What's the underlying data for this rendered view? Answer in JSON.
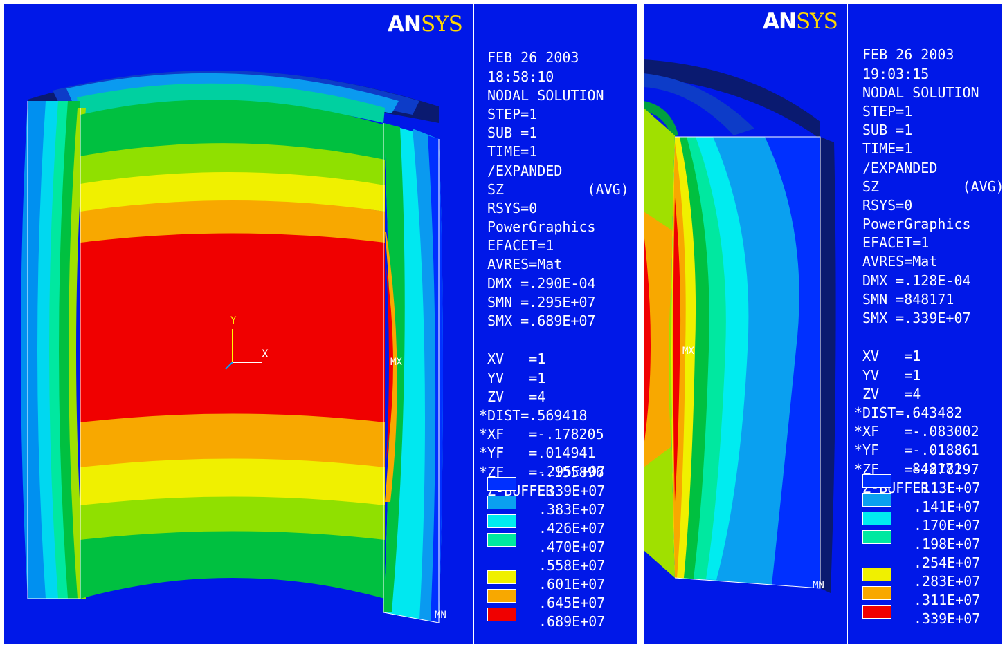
{
  "panels": [
    {
      "logo": {
        "an": "AN",
        "sys": "SYS"
      },
      "header": [
        "FEB 26 2003",
        "18:58:10",
        "NODAL SOLUTION",
        "STEP=1",
        "SUB =1",
        "TIME=1",
        "/EXPANDED",
        "SZ          (AVG)",
        "RSYS=0",
        "PowerGraphics",
        "EFACET=1",
        "AVRES=Mat",
        "DMX =.290E-04",
        "SMN =.295E+07",
        "SMX =.689E+07"
      ],
      "view": [
        "XV   =1",
        "YV   =1",
        "ZV   =4",
        "*DIST=.569418",
        "*XF   =-.178205",
        "*YF   =.014941",
        "*ZF   =-.155896",
        "Z-BUFFER"
      ],
      "legend_top": ".295E+07",
      "legend": [
        {
          "color": "#0030ff",
          "value": ".339E+07"
        },
        {
          "color": "#0aa0f0",
          "value": ".383E+07"
        },
        {
          "color": "#00ecf0",
          "value": ".426E+07"
        },
        {
          "color": "#00e8a0",
          "value": ".470E+07"
        },
        {
          "color": "",
          "value": ".558E+07"
        },
        {
          "color": "#f0f000",
          "value": ".601E+07"
        },
        {
          "color": "#f8a800",
          "value": ".645E+07"
        },
        {
          "color": "#f00000",
          "value": ".689E+07"
        }
      ],
      "markers": {
        "mx": "MX",
        "mn": "MN",
        "axis_y": "Y",
        "axis_x": "X"
      }
    },
    {
      "logo": {
        "an": "AN",
        "sys": "SYS"
      },
      "header": [
        "FEB 26 2003",
        "19:03:15",
        "NODAL SOLUTION",
        "STEP=1",
        "SUB =1",
        "TIME=1",
        "/EXPANDED",
        "SZ          (AVG)",
        "RSYS=0",
        "PowerGraphics",
        "EFACET=1",
        "AVRES=Mat",
        "DMX =.128E-04",
        "SMN =848171",
        "SMX =.339E+07"
      ],
      "view": [
        "XV   =1",
        "YV   =1",
        "ZV   =4",
        "*DIST=.643482",
        "*XF   =-.083002",
        "*YF   =-.018861",
        "*ZF   =-.278297",
        "Z-BUFFER"
      ],
      "legend_top": "848171",
      "legend": [
        {
          "color": "#0030ff",
          "value": ".113E+07"
        },
        {
          "color": "#0aa0f0",
          "value": ".141E+07"
        },
        {
          "color": "#00ecf0",
          "value": ".170E+07"
        },
        {
          "color": "#00e8a0",
          "value": ".198E+07"
        },
        {
          "color": "",
          "value": ".254E+07"
        },
        {
          "color": "#f0f000",
          "value": ".283E+07"
        },
        {
          "color": "#f8a800",
          "value": ".311E+07"
        },
        {
          "color": "#f00000",
          "value": ".339E+07"
        }
      ],
      "markers": {
        "mx": "MX",
        "mn": "MN"
      }
    }
  ]
}
